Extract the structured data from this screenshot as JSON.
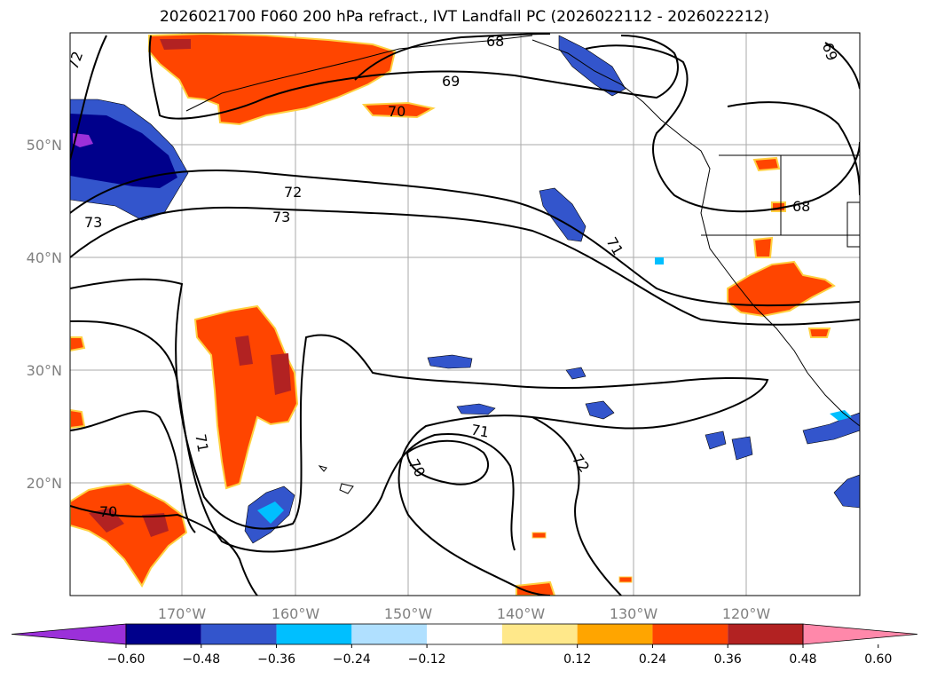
{
  "title": "2026021700 F060 200 hPa refract., IVT Landfall PC (2026022112 - 2026022212)",
  "lat_labels": [
    "50°N",
    "40°N",
    "30°N",
    "20°N"
  ],
  "lon_labels": [
    "170°W",
    "160°W",
    "150°W",
    "140°W",
    "130°W",
    "120°W"
  ],
  "contour_labels": [
    "68",
    "69",
    "70",
    "72",
    "73",
    "73",
    "71",
    "71",
    "70",
    "72",
    "71",
    "70",
    "68",
    "69",
    "72"
  ],
  "colorbar": {
    "colors": [
      "#9b30d9",
      "#00008b",
      "#3355cc",
      "#00bfff",
      "#b0e0ff",
      "#ffffff",
      "#ffe88a",
      "#ffa500",
      "#ff4500",
      "#b22222",
      "#ff88aa"
    ],
    "ticks": [
      "−0.60",
      "−0.48",
      "−0.36",
      "−0.24",
      "−0.12",
      "0.12",
      "0.24",
      "0.36",
      "0.48",
      "0.60"
    ]
  }
}
